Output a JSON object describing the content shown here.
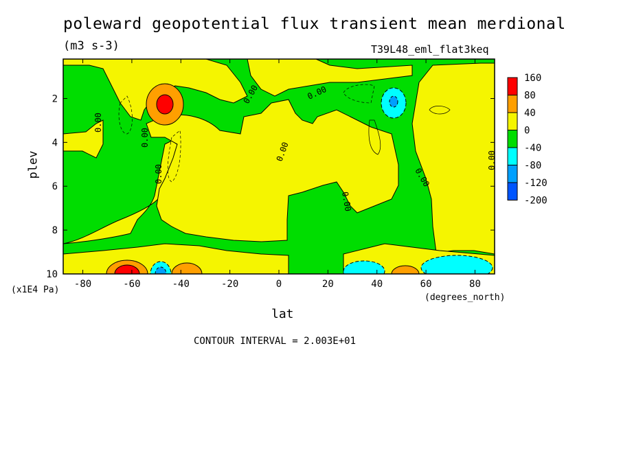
{
  "page": {
    "title": "poleward geopotential flux transient mean merdional",
    "units": "(m3 s-3)",
    "dataset": "T39L48_eml_flat3keq",
    "contour_interval": "CONTOUR INTERVAL = 2.003E+01"
  },
  "chart_data": {
    "type": "heatmap",
    "title": "poleward geopotential flux transient mean merdional",
    "subtitle": "(m3 s-3)",
    "xlabel": "lat",
    "xunits": "(degrees_north)",
    "ylabel": "plev",
    "yunits": "(x1E4 Pa)",
    "xlim": [
      -88,
      88
    ],
    "ylim": [
      10,
      0.2
    ],
    "x_ticks": [
      -80,
      -60,
      -40,
      -20,
      0,
      20,
      40,
      60,
      80
    ],
    "x_tick_labels": [
      "-80",
      "-60",
      "-40",
      "-20",
      "0",
      "20",
      "40",
      "60",
      "80"
    ],
    "y_ticks": [
      2,
      4,
      6,
      8,
      10
    ],
    "y_tick_labels": [
      "2",
      "4",
      "6",
      "8",
      "10"
    ],
    "contour_label": "0.00",
    "colorbar": {
      "labels": [
        "160",
        "80",
        "40",
        "0",
        "-40",
        "-80",
        "-120",
        "-200"
      ],
      "colors": [
        "#ff0000",
        "#ff9f00",
        "#f5f500",
        "#00dd00",
        "#00ffff",
        "#00a0ff",
        "#0055ff"
      ],
      "color_names": [
        "red",
        "orange",
        "yellow",
        "green",
        "cyan",
        "light blue",
        "blue"
      ]
    },
    "features": [
      {
        "name": "positive maximum",
        "lat": -47,
        "plev": 2.2,
        "level": "160"
      },
      {
        "name": "positive maximum",
        "lat": -62,
        "plev": 9.7,
        "level": "160"
      },
      {
        "name": "positive maximum",
        "lat": -37,
        "plev": 9.7,
        "level": "80"
      },
      {
        "name": "positive maximum",
        "lat": 48,
        "plev": 9.8,
        "level": "80"
      },
      {
        "name": "negative minimum",
        "lat": 47,
        "plev": 2.0,
        "level": "-80"
      },
      {
        "name": "negative minimum",
        "lat": -48,
        "plev": 9.9,
        "level": "-120"
      },
      {
        "name": "negative minimum",
        "lat": 38,
        "plev": 9.7,
        "level": "-40"
      },
      {
        "name": "negative minimum",
        "lat": 70,
        "plev": 9.6,
        "level": "-40"
      }
    ]
  }
}
